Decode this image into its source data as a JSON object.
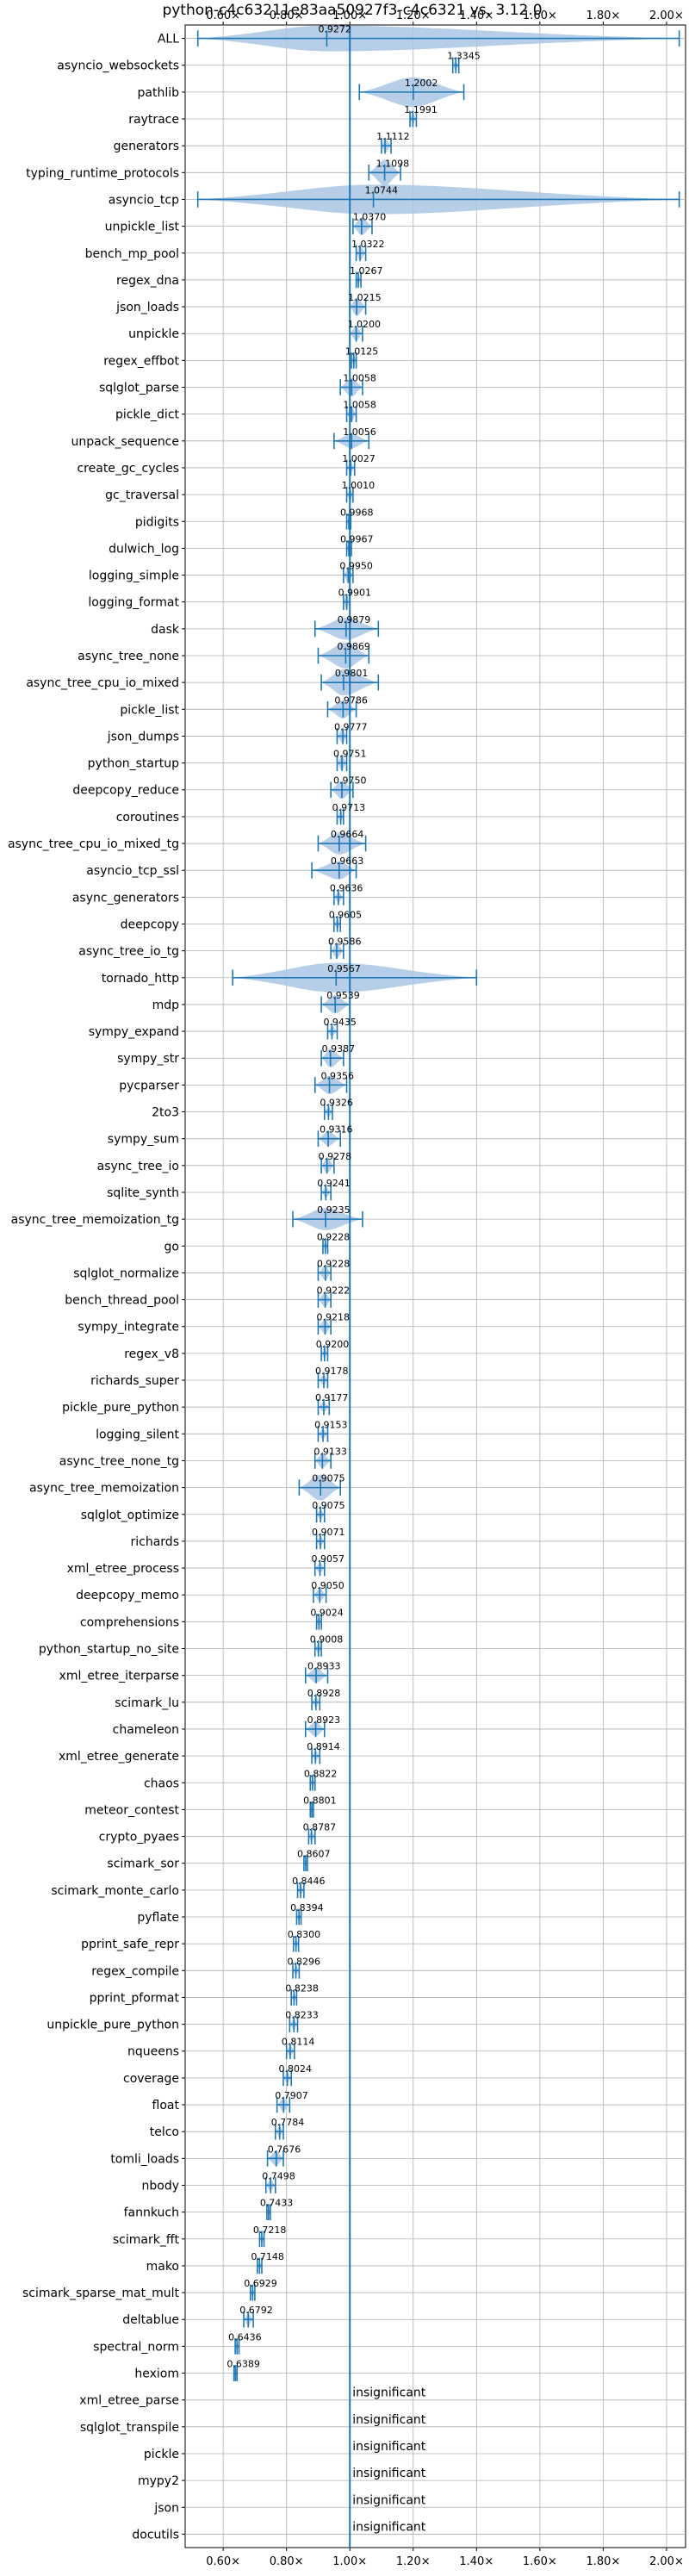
{
  "chart_data": {
    "type": "violin",
    "title": "python-c4c63211e83aa50927f3-c4c6321 vs. 3.12.0",
    "xlabel": "",
    "ylabel": "",
    "xlim": [
      0.48,
      2.06
    ],
    "xticks": [
      0.6,
      0.8,
      1.0,
      1.2,
      1.4,
      1.6,
      1.8,
      2.0
    ],
    "xtick_labels": [
      "0.60×",
      "0.80×",
      "1.00×",
      "1.20×",
      "1.40×",
      "1.60×",
      "1.80×",
      "2.00×"
    ],
    "reference_line": 1.0,
    "grid": true,
    "colors": {
      "violin": "#a9c6e3",
      "marker": "#1f77b4",
      "reference": "#1f77b4",
      "grid": "#b0b0b0"
    },
    "insignificant_text": "insignificant",
    "rows": [
      {
        "name": "ALL",
        "value": 0.9272,
        "label": "0.9272",
        "lo": 0.52,
        "hi": 2.04,
        "spread": 0.05
      },
      {
        "name": "asyncio_websockets",
        "value": 1.3345,
        "label": "1.3345",
        "lo": 1.325,
        "hi": 1.344,
        "spread": 0.01
      },
      {
        "name": "pathlib",
        "value": 1.2002,
        "label": "1.2002",
        "lo": 1.03,
        "hi": 1.36,
        "spread": 0.13
      },
      {
        "name": "raytrace",
        "value": 1.1991,
        "label": "1.1991",
        "lo": 1.19,
        "hi": 1.21,
        "spread": 0.01
      },
      {
        "name": "generators",
        "value": 1.1112,
        "label": "1.1112",
        "lo": 1.1,
        "hi": 1.13,
        "spread": 0.02
      },
      {
        "name": "typing_runtime_protocols",
        "value": 1.1098,
        "label": "1.1098",
        "lo": 1.06,
        "hi": 1.16,
        "spread": 0.05
      },
      {
        "name": "asyncio_tcp",
        "value": 1.0744,
        "label": "1.0744",
        "lo": 0.52,
        "hi": 2.04,
        "spread": 0.6
      },
      {
        "name": "unpickle_list",
        "value": 1.037,
        "label": "1.0370",
        "lo": 1.01,
        "hi": 1.07,
        "spread": 0.03
      },
      {
        "name": "bench_mp_pool",
        "value": 1.0322,
        "label": "1.0322",
        "lo": 1.02,
        "hi": 1.05,
        "spread": 0.02
      },
      {
        "name": "regex_dna",
        "value": 1.0267,
        "label": "1.0267",
        "lo": 1.02,
        "hi": 1.035,
        "spread": 0.01
      },
      {
        "name": "json_loads",
        "value": 1.0215,
        "label": "1.0215",
        "lo": 1.0,
        "hi": 1.05,
        "spread": 0.03
      },
      {
        "name": "unpickle",
        "value": 1.02,
        "label": "1.0200",
        "lo": 1.0,
        "hi": 1.04,
        "spread": 0.02
      },
      {
        "name": "regex_effbot",
        "value": 1.0125,
        "label": "1.0125",
        "lo": 1.005,
        "hi": 1.02,
        "spread": 0.01
      },
      {
        "name": "sqlglot_parse",
        "value": 1.0058,
        "label": "1.0058",
        "lo": 0.97,
        "hi": 1.04,
        "spread": 0.03
      },
      {
        "name": "pickle_dict",
        "value": 1.0058,
        "label": "1.0058",
        "lo": 0.99,
        "hi": 1.02,
        "spread": 0.02
      },
      {
        "name": "unpack_sequence",
        "value": 1.0056,
        "label": "1.0056",
        "lo": 0.95,
        "hi": 1.06,
        "spread": 0.02
      },
      {
        "name": "create_gc_cycles",
        "value": 1.0027,
        "label": "1.0027",
        "lo": 0.99,
        "hi": 1.015,
        "spread": 0.01
      },
      {
        "name": "gc_traversal",
        "value": 1.001,
        "label": "1.0010",
        "lo": 0.99,
        "hi": 1.01,
        "spread": 0.01
      },
      {
        "name": "pidigits",
        "value": 0.9968,
        "label": "0.9968",
        "lo": 0.99,
        "hi": 1.003,
        "spread": 0.005
      },
      {
        "name": "dulwich_log",
        "value": 0.9967,
        "label": "0.9967",
        "lo": 0.99,
        "hi": 1.005,
        "spread": 0.01
      },
      {
        "name": "logging_simple",
        "value": 0.995,
        "label": "0.9950",
        "lo": 0.98,
        "hi": 1.01,
        "spread": 0.02
      },
      {
        "name": "logging_format",
        "value": 0.9901,
        "label": "0.9901",
        "lo": 0.98,
        "hi": 1.0,
        "spread": 0.02
      },
      {
        "name": "dask",
        "value": 0.9879,
        "label": "0.9879",
        "lo": 0.89,
        "hi": 1.09,
        "spread": 0.04
      },
      {
        "name": "async_tree_none",
        "value": 0.9869,
        "label": "0.9869",
        "lo": 0.9,
        "hi": 1.06,
        "spread": 0.05
      },
      {
        "name": "async_tree_cpu_io_mixed",
        "value": 0.9801,
        "label": "0.9801",
        "lo": 0.91,
        "hi": 1.09,
        "spread": 0.05
      },
      {
        "name": "pickle_list",
        "value": 0.9786,
        "label": "0.9786",
        "lo": 0.93,
        "hi": 1.02,
        "spread": 0.03
      },
      {
        "name": "json_dumps",
        "value": 0.9777,
        "label": "0.9777",
        "lo": 0.96,
        "hi": 0.99,
        "spread": 0.02
      },
      {
        "name": "python_startup",
        "value": 0.9751,
        "label": "0.9751",
        "lo": 0.96,
        "hi": 0.99,
        "spread": 0.02
      },
      {
        "name": "deepcopy_reduce",
        "value": 0.975,
        "label": "0.9750",
        "lo": 0.94,
        "hi": 1.01,
        "spread": 0.03
      },
      {
        "name": "coroutines",
        "value": 0.9713,
        "label": "0.9713",
        "lo": 0.96,
        "hi": 0.98,
        "spread": 0.01
      },
      {
        "name": "async_tree_cpu_io_mixed_tg",
        "value": 0.9664,
        "label": "0.9664",
        "lo": 0.9,
        "hi": 1.05,
        "spread": 0.04
      },
      {
        "name": "asyncio_tcp_ssl",
        "value": 0.9663,
        "label": "0.9663",
        "lo": 0.88,
        "hi": 1.02,
        "spread": 0.03
      },
      {
        "name": "async_generators",
        "value": 0.9636,
        "label": "0.9636",
        "lo": 0.95,
        "hi": 0.98,
        "spread": 0.01
      },
      {
        "name": "deepcopy",
        "value": 0.9605,
        "label": "0.9605",
        "lo": 0.95,
        "hi": 0.97,
        "spread": 0.01
      },
      {
        "name": "async_tree_io_tg",
        "value": 0.9586,
        "label": "0.9586",
        "lo": 0.94,
        "hi": 0.98,
        "spread": 0.02
      },
      {
        "name": "tornado_http",
        "value": 0.9567,
        "label": "0.9567",
        "lo": 0.63,
        "hi": 1.4,
        "spread": 0.15
      },
      {
        "name": "mdp",
        "value": 0.9539,
        "label": "0.9539",
        "lo": 0.91,
        "hi": 1.0,
        "spread": 0.03
      },
      {
        "name": "sympy_expand",
        "value": 0.9435,
        "label": "0.9435",
        "lo": 0.93,
        "hi": 0.96,
        "spread": 0.01
      },
      {
        "name": "sympy_str",
        "value": 0.9387,
        "label": "0.9387",
        "lo": 0.91,
        "hi": 0.98,
        "spread": 0.03
      },
      {
        "name": "pycparser",
        "value": 0.9356,
        "label": "0.9356",
        "lo": 0.89,
        "hi": 0.99,
        "spread": 0.03
      },
      {
        "name": "2to3",
        "value": 0.9326,
        "label": "0.9326",
        "lo": 0.92,
        "hi": 0.945,
        "spread": 0.01
      },
      {
        "name": "sympy_sum",
        "value": 0.9316,
        "label": "0.9316",
        "lo": 0.9,
        "hi": 0.97,
        "spread": 0.02
      },
      {
        "name": "async_tree_io",
        "value": 0.9278,
        "label": "0.9278",
        "lo": 0.91,
        "hi": 0.95,
        "spread": 0.02
      },
      {
        "name": "sqlite_synth",
        "value": 0.9241,
        "label": "0.9241",
        "lo": 0.91,
        "hi": 0.94,
        "spread": 0.01
      },
      {
        "name": "async_tree_memoization_tg",
        "value": 0.9235,
        "label": "0.9235",
        "lo": 0.82,
        "hi": 1.04,
        "spread": 0.04
      },
      {
        "name": "go",
        "value": 0.9228,
        "label": "0.9228",
        "lo": 0.915,
        "hi": 0.93,
        "spread": 0.01
      },
      {
        "name": "sqlglot_normalize",
        "value": 0.9228,
        "label": "0.9228",
        "lo": 0.9,
        "hi": 0.94,
        "spread": 0.02
      },
      {
        "name": "bench_thread_pool",
        "value": 0.9222,
        "label": "0.9222",
        "lo": 0.9,
        "hi": 0.94,
        "spread": 0.02
      },
      {
        "name": "sympy_integrate",
        "value": 0.9218,
        "label": "0.9218",
        "lo": 0.9,
        "hi": 0.94,
        "spread": 0.02
      },
      {
        "name": "regex_v8",
        "value": 0.92,
        "label": "0.9200",
        "lo": 0.91,
        "hi": 0.93,
        "spread": 0.01
      },
      {
        "name": "richards_super",
        "value": 0.9178,
        "label": "0.9178",
        "lo": 0.9,
        "hi": 0.93,
        "spread": 0.01
      },
      {
        "name": "pickle_pure_python",
        "value": 0.9177,
        "label": "0.9177",
        "lo": 0.9,
        "hi": 0.935,
        "spread": 0.01
      },
      {
        "name": "logging_silent",
        "value": 0.9153,
        "label": "0.9153",
        "lo": 0.9,
        "hi": 0.93,
        "spread": 0.01
      },
      {
        "name": "async_tree_none_tg",
        "value": 0.9133,
        "label": "0.9133",
        "lo": 0.89,
        "hi": 0.94,
        "spread": 0.02
      },
      {
        "name": "async_tree_memoization",
        "value": 0.9075,
        "label": "0.9075",
        "lo": 0.84,
        "hi": 0.97,
        "spread": 0.05
      },
      {
        "name": "sqlglot_optimize",
        "value": 0.9075,
        "label": "0.9075",
        "lo": 0.895,
        "hi": 0.92,
        "spread": 0.01
      },
      {
        "name": "richards",
        "value": 0.9071,
        "label": "0.9071",
        "lo": 0.895,
        "hi": 0.92,
        "spread": 0.01
      },
      {
        "name": "xml_etree_process",
        "value": 0.9057,
        "label": "0.9057",
        "lo": 0.89,
        "hi": 0.92,
        "spread": 0.01
      },
      {
        "name": "deepcopy_memo",
        "value": 0.905,
        "label": "0.9050",
        "lo": 0.885,
        "hi": 0.925,
        "spread": 0.015
      },
      {
        "name": "comprehensions",
        "value": 0.9024,
        "label": "0.9024",
        "lo": 0.895,
        "hi": 0.91,
        "spread": 0.01
      },
      {
        "name": "python_startup_no_site",
        "value": 0.9008,
        "label": "0.9008",
        "lo": 0.89,
        "hi": 0.91,
        "spread": 0.01
      },
      {
        "name": "xml_etree_iterparse",
        "value": 0.8933,
        "label": "0.8933",
        "lo": 0.86,
        "hi": 0.93,
        "spread": 0.02
      },
      {
        "name": "scimark_lu",
        "value": 0.8928,
        "label": "0.8928",
        "lo": 0.88,
        "hi": 0.905,
        "spread": 0.01
      },
      {
        "name": "chameleon",
        "value": 0.8923,
        "label": "0.8923",
        "lo": 0.86,
        "hi": 0.92,
        "spread": 0.02
      },
      {
        "name": "xml_etree_generate",
        "value": 0.8914,
        "label": "0.8914",
        "lo": 0.88,
        "hi": 0.905,
        "spread": 0.01
      },
      {
        "name": "chaos",
        "value": 0.8822,
        "label": "0.8822",
        "lo": 0.875,
        "hi": 0.89,
        "spread": 0.01
      },
      {
        "name": "meteor_contest",
        "value": 0.8801,
        "label": "0.8801",
        "lo": 0.875,
        "hi": 0.885,
        "spread": 0.005
      },
      {
        "name": "crypto_pyaes",
        "value": 0.8787,
        "label": "0.8787",
        "lo": 0.87,
        "hi": 0.89,
        "spread": 0.01
      },
      {
        "name": "scimark_sor",
        "value": 0.8607,
        "label": "0.8607",
        "lo": 0.855,
        "hi": 0.866,
        "spread": 0.005
      },
      {
        "name": "scimark_monte_carlo",
        "value": 0.8446,
        "label": "0.8446",
        "lo": 0.835,
        "hi": 0.855,
        "spread": 0.01
      },
      {
        "name": "pyflate",
        "value": 0.8394,
        "label": "0.8394",
        "lo": 0.832,
        "hi": 0.846,
        "spread": 0.005
      },
      {
        "name": "pprint_safe_repr",
        "value": 0.83,
        "label": "0.8300",
        "lo": 0.822,
        "hi": 0.838,
        "spread": 0.005
      },
      {
        "name": "regex_compile",
        "value": 0.8296,
        "label": "0.8296",
        "lo": 0.82,
        "hi": 0.84,
        "spread": 0.008
      },
      {
        "name": "pprint_pformat",
        "value": 0.8238,
        "label": "0.8238",
        "lo": 0.815,
        "hi": 0.832,
        "spread": 0.005
      },
      {
        "name": "unpickle_pure_python",
        "value": 0.8233,
        "label": "0.8233",
        "lo": 0.81,
        "hi": 0.835,
        "spread": 0.01
      },
      {
        "name": "nqueens",
        "value": 0.8114,
        "label": "0.8114",
        "lo": 0.8,
        "hi": 0.825,
        "spread": 0.01
      },
      {
        "name": "coverage",
        "value": 0.8024,
        "label": "0.8024",
        "lo": 0.79,
        "hi": 0.815,
        "spread": 0.01
      },
      {
        "name": "float",
        "value": 0.7907,
        "label": "0.7907",
        "lo": 0.77,
        "hi": 0.81,
        "spread": 0.015
      },
      {
        "name": "telco",
        "value": 0.7784,
        "label": "0.7784",
        "lo": 0.765,
        "hi": 0.79,
        "spread": 0.01
      },
      {
        "name": "tomli_loads",
        "value": 0.7676,
        "label": "0.7676",
        "lo": 0.74,
        "hi": 0.79,
        "spread": 0.02
      },
      {
        "name": "nbody",
        "value": 0.7498,
        "label": "0.7498",
        "lo": 0.735,
        "hi": 0.765,
        "spread": 0.012
      },
      {
        "name": "fannkuch",
        "value": 0.7433,
        "label": "0.7433",
        "lo": 0.738,
        "hi": 0.749,
        "spread": 0.005
      },
      {
        "name": "scimark_fft",
        "value": 0.7218,
        "label": "0.7218",
        "lo": 0.715,
        "hi": 0.729,
        "spread": 0.005
      },
      {
        "name": "mako",
        "value": 0.7148,
        "label": "0.7148",
        "lo": 0.708,
        "hi": 0.722,
        "spread": 0.005
      },
      {
        "name": "scimark_sparse_mat_mult",
        "value": 0.6929,
        "label": "0.6929",
        "lo": 0.686,
        "hi": 0.7,
        "spread": 0.005
      },
      {
        "name": "deltablue",
        "value": 0.6792,
        "label": "0.6792",
        "lo": 0.665,
        "hi": 0.695,
        "spread": 0.012
      },
      {
        "name": "spectral_norm",
        "value": 0.6436,
        "label": "0.6436",
        "lo": 0.638,
        "hi": 0.65,
        "spread": 0.004
      },
      {
        "name": "hexiom",
        "value": 0.6389,
        "label": "0.6389",
        "lo": 0.634,
        "hi": 0.644,
        "spread": 0.004
      },
      {
        "name": "xml_etree_parse",
        "insignificant": true
      },
      {
        "name": "sqlglot_transpile",
        "insignificant": true
      },
      {
        "name": "pickle",
        "insignificant": true
      },
      {
        "name": "mypy2",
        "insignificant": true
      },
      {
        "name": "json",
        "insignificant": true
      },
      {
        "name": "docutils",
        "insignificant": true
      }
    ]
  }
}
